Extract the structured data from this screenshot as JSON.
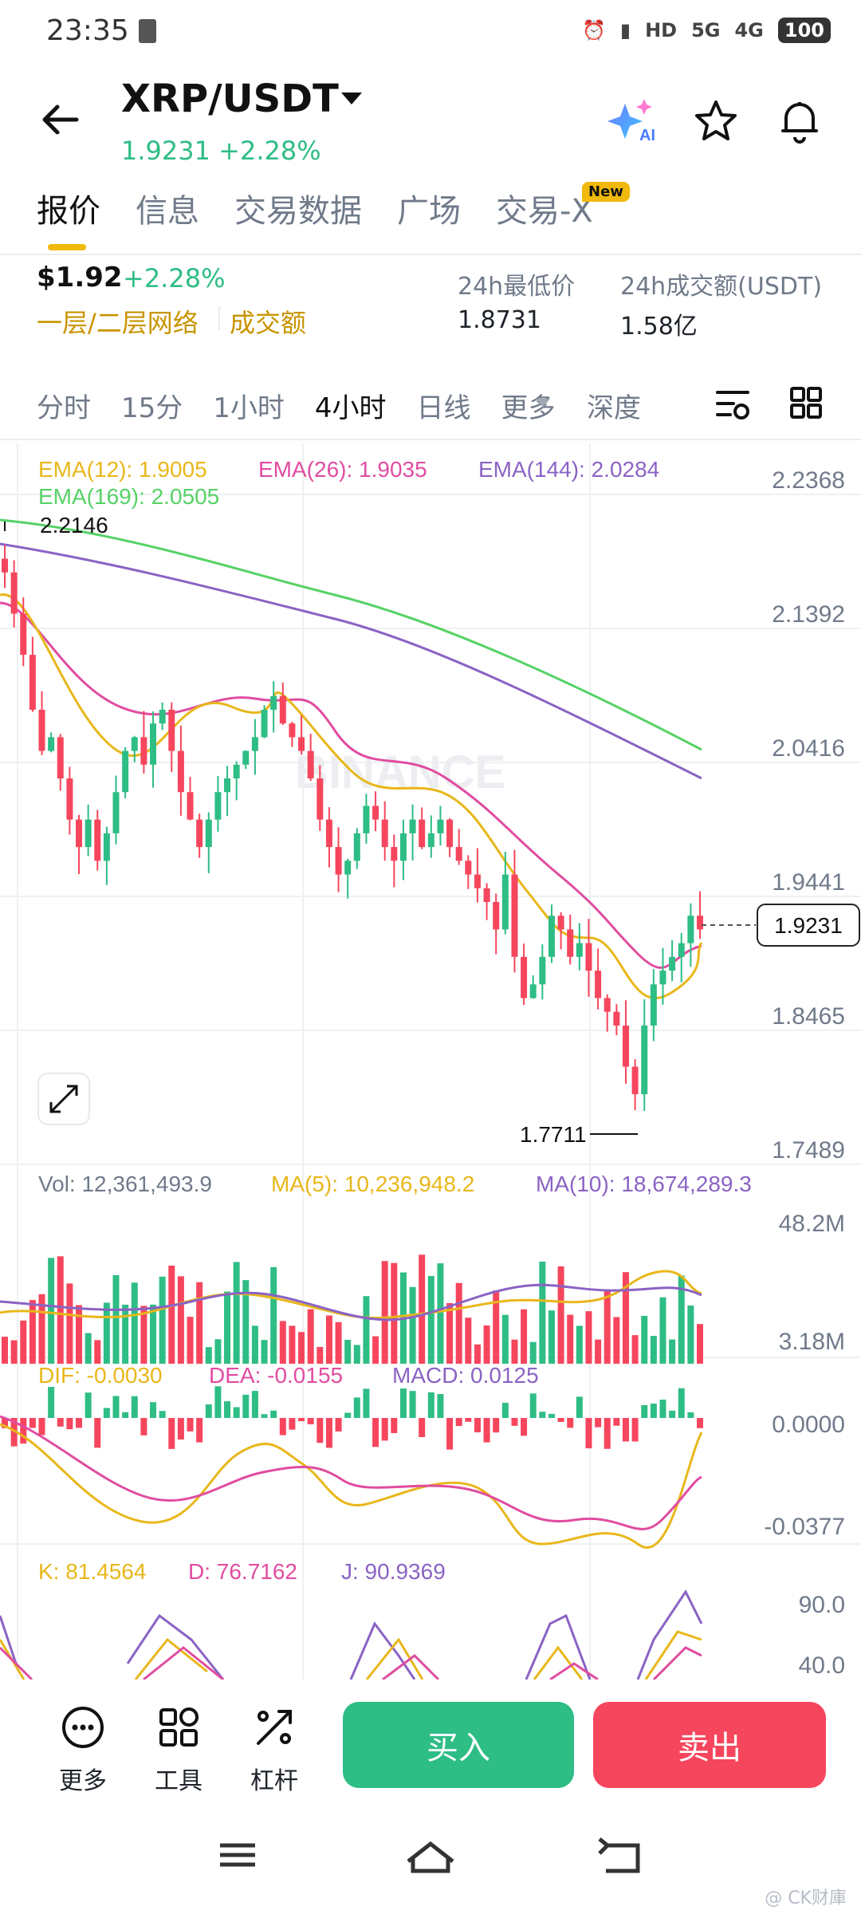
{
  "status": {
    "time": "23:35",
    "network1": "5G",
    "network2": "4G",
    "battery": "100",
    "hd": "HD"
  },
  "header": {
    "pair": "XRP/USDT",
    "price": "1.9231",
    "change": "+2.28%",
    "ai_label": "AI"
  },
  "tabs": [
    {
      "label": "报价",
      "active": true
    },
    {
      "label": "信息"
    },
    {
      "label": "交易数据"
    },
    {
      "label": "广场"
    },
    {
      "label": "交易-X"
    }
  ],
  "new_badge": "New",
  "summary": {
    "price": "$1.92",
    "change": "+2.28%",
    "link1": "一层/二层网络",
    "link2": "成交额",
    "low_label": "24h最低价",
    "low_value": "1.8731",
    "vol_label": "24h成交额(USDT)",
    "vol_value": "1.58亿"
  },
  "intervals": [
    "分时",
    "15分",
    "1小时",
    "4小时",
    "日线",
    "更多"
  ],
  "selected_interval": "4小时",
  "depth_label": "深度",
  "chart_data": {
    "type": "candlestick",
    "ema": {
      "ema12": "EMA(12): 1.9005",
      "ema26": "EMA(26): 1.9035",
      "ema144": "EMA(144): 2.0284",
      "ema169": "EMA(169): 2.0505"
    },
    "price_axis": [
      "2.2368",
      "2.1392",
      "2.0416",
      "1.9441",
      "1.8465",
      "1.7489"
    ],
    "high_label": "2.2146",
    "low_label": "1.7711",
    "current_price": "1.9231",
    "watermark": "BINANCE",
    "ylim": [
      1.7489,
      2.2368
    ],
    "candles_approx": [
      2.18,
      2.15,
      2.12,
      2.08,
      2.05,
      2.06,
      2.03,
      2.0,
      1.98,
      2.0,
      1.97,
      1.99,
      2.02,
      2.05,
      2.06,
      2.04,
      2.07,
      2.08,
      2.05,
      2.02,
      2.0,
      1.98,
      2.0,
      2.02,
      2.03,
      2.04,
      2.05,
      2.06,
      2.08,
      2.09,
      2.07,
      2.06,
      2.05,
      2.03,
      2.0,
      1.98,
      1.96,
      1.97,
      1.99,
      2.01,
      2.0,
      1.98,
      1.97,
      1.99,
      2.0,
      1.98,
      1.99,
      2.0,
      1.98,
      1.97,
      1.96,
      1.95,
      1.94,
      1.92,
      1.96,
      1.9,
      1.87,
      1.88,
      1.9,
      1.93,
      1.92,
      1.9,
      1.91,
      1.89,
      1.87,
      1.86,
      1.85,
      1.82,
      1.8,
      1.85,
      1.88,
      1.89,
      1.9,
      1.91,
      1.93,
      1.92
    ],
    "volume": {
      "vol": "Vol: 12,361,493.9",
      "ma5": "MA(5): 10,236,948.2",
      "ma10": "MA(10): 18,674,289.3",
      "axis_top": "48.2M",
      "axis_bottom": "3.18M"
    },
    "macd": {
      "dif": "DIF: -0.0030",
      "dea": "DEA: -0.0155",
      "macd": "MACD: 0.0125",
      "axis_top": "0.0000",
      "axis_bottom": "-0.0377"
    },
    "kdj": {
      "k": "K: 81.4564",
      "d": "D: 76.7162",
      "j": "J: 90.9369",
      "axis_top": "90.0",
      "axis_bottom": "40.0"
    }
  },
  "actions": {
    "more": "更多",
    "tools": "工具",
    "leverage": "杠杆",
    "buy": "买入",
    "sell": "卖出"
  },
  "footer_watermark": "@ CK财庫",
  "colors": {
    "green": "#2ebd85",
    "red": "#f6465d",
    "yellow": "#f0b90b",
    "ema12": "#e8b71a",
    "ema26": "#e04ca0",
    "ema144": "#8a63c4",
    "ema169": "#56d266"
  }
}
